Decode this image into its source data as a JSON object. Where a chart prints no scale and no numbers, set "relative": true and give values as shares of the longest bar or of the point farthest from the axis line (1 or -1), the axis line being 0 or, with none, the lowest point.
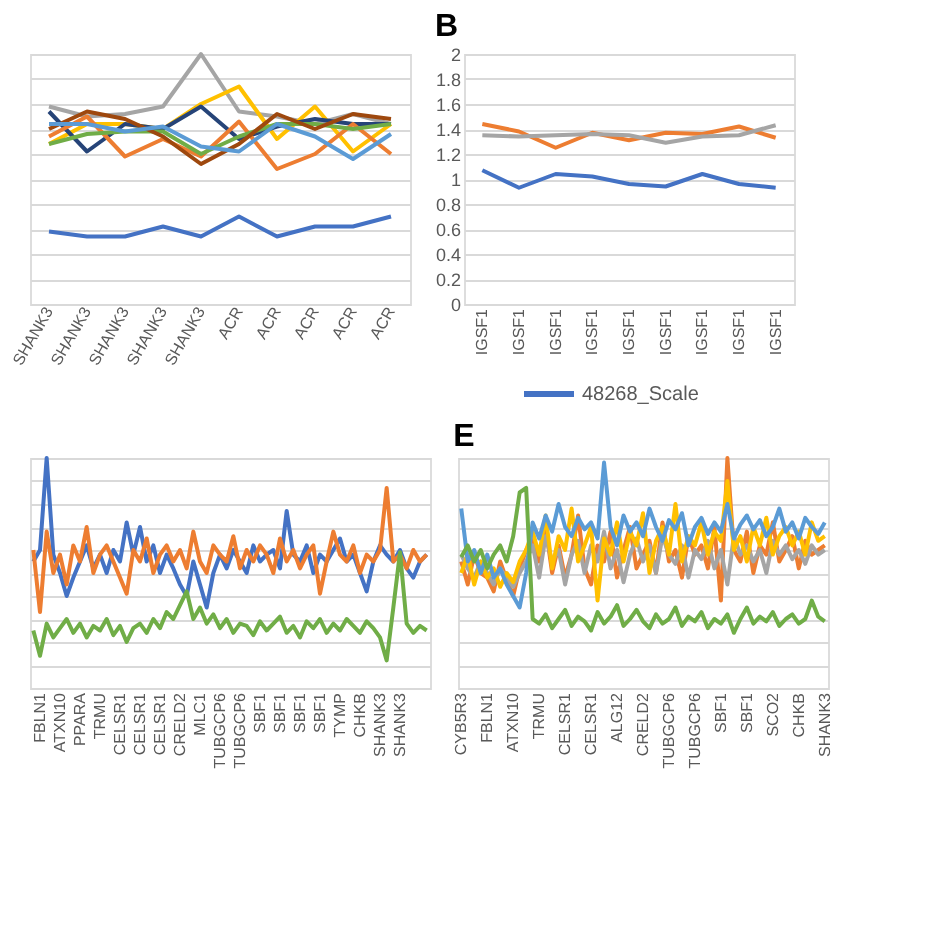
{
  "chart_data": [
    {
      "type": "line",
      "relative": true,
      "grid": "y",
      "categories": [
        "SHANK3",
        "SHANK3",
        "SHANK3",
        "SHANK3",
        "SHANK3",
        "ACR",
        "ACR",
        "ACR",
        "ACR",
        "ACR"
      ],
      "series": [
        {
          "color": "#4472c4",
          "values": [
            0.29,
            0.27,
            0.27,
            0.31,
            0.27,
            0.35,
            0.27,
            0.31,
            0.31,
            0.35
          ]
        },
        {
          "color": "#a5a5a5",
          "values": [
            0.79,
            0.75,
            0.76,
            0.79,
            1.0,
            0.77,
            0.75,
            0.72,
            0.76,
            0.72
          ]
        },
        {
          "color": "#ffc000",
          "values": [
            0.64,
            0.72,
            0.72,
            0.7,
            0.8,
            0.87,
            0.66,
            0.79,
            0.61,
            0.72
          ]
        },
        {
          "color": "#264478",
          "values": [
            0.77,
            0.61,
            0.72,
            0.7,
            0.79,
            0.66,
            0.71,
            0.74,
            0.72,
            0.72
          ]
        },
        {
          "color": "#ed7d31",
          "values": [
            0.67,
            0.75,
            0.59,
            0.66,
            0.59,
            0.73,
            0.54,
            0.6,
            0.72,
            0.6
          ]
        },
        {
          "color": "#70ad47",
          "values": [
            0.64,
            0.68,
            0.69,
            0.69,
            0.6,
            0.67,
            0.72,
            0.72,
            0.7,
            0.72
          ]
        },
        {
          "color": "#9e480e",
          "values": [
            0.7,
            0.77,
            0.74,
            0.67,
            0.56,
            0.64,
            0.76,
            0.7,
            0.76,
            0.74
          ]
        },
        {
          "color": "#5b9bd5",
          "values": [
            0.72,
            0.72,
            0.69,
            0.71,
            0.63,
            0.61,
            0.72,
            0.67,
            0.58,
            0.68
          ]
        }
      ]
    },
    {
      "type": "line",
      "title": "B",
      "grid": "y",
      "legend": "bottom",
      "ylim": [
        0,
        2
      ],
      "yticks": [
        0,
        0.2,
        0.4,
        0.6,
        0.8,
        1,
        1.2,
        1.4,
        1.6,
        1.8,
        2
      ],
      "categories": [
        "IGSF1",
        "IGSF1",
        "IGSF1",
        "IGSF1",
        "IGSF1",
        "IGSF1",
        "IGSF1",
        "IGSF1",
        "IGSF1"
      ],
      "series": [
        {
          "name": "48268_Scale",
          "color": "#4472c4",
          "values": [
            1.07,
            0.93,
            1.04,
            1.02,
            0.96,
            0.94,
            1.04,
            0.96,
            0.93
          ]
        },
        {
          "color": "#ed7d31",
          "values": [
            1.44,
            1.38,
            1.25,
            1.37,
            1.31,
            1.37,
            1.36,
            1.42,
            1.33
          ]
        },
        {
          "color": "#a5a5a5",
          "values": [
            1.35,
            1.34,
            1.35,
            1.36,
            1.35,
            1.29,
            1.34,
            1.35,
            1.43
          ]
        }
      ]
    },
    {
      "type": "line",
      "relative": true,
      "grid": "y",
      "categories": [
        null,
        "FBLN1",
        null,
        null,
        "ATXN10",
        null,
        null,
        "PPARA",
        null,
        null,
        "TRMU",
        null,
        null,
        "CELSR1",
        null,
        null,
        "CELSR1",
        null,
        null,
        "CELSR1",
        null,
        null,
        "CRELD2",
        null,
        null,
        "MLC1",
        null,
        null,
        "TUBGCP6",
        null,
        null,
        "TUBGCP6",
        null,
        null,
        "SBF1",
        null,
        null,
        "SBF1",
        null,
        null,
        "SBF1",
        null,
        null,
        "SBF1",
        null,
        null,
        "TYMP",
        null,
        null,
        "CHKB",
        null,
        null,
        "SHANK3",
        null,
        null,
        "SHANK3",
        null,
        null,
        null,
        null
      ],
      "series": [
        {
          "color": "#4472c4",
          "values": [
            0.55,
            0.6,
            1.0,
            0.58,
            0.5,
            0.4,
            0.48,
            0.55,
            0.62,
            0.52,
            0.58,
            0.5,
            0.6,
            0.55,
            0.72,
            0.58,
            0.7,
            0.55,
            0.62,
            0.5,
            0.58,
            0.52,
            0.45,
            0.4,
            0.55,
            0.45,
            0.35,
            0.5,
            0.58,
            0.52,
            0.6,
            0.55,
            0.5,
            0.62,
            0.55,
            0.58,
            0.6,
            0.52,
            0.77,
            0.58,
            0.55,
            0.62,
            0.5,
            0.58,
            0.55,
            0.6,
            0.65,
            0.55,
            0.58,
            0.5,
            0.42,
            0.55,
            0.62,
            0.58,
            0.55,
            0.6,
            0.52,
            0.48,
            0.55,
            0.58
          ]
        },
        {
          "color": "#ed7d31",
          "values": [
            0.6,
            0.33,
            0.68,
            0.5,
            0.58,
            0.45,
            0.62,
            0.55,
            0.7,
            0.5,
            0.58,
            0.62,
            0.55,
            0.48,
            0.41,
            0.6,
            0.55,
            0.65,
            0.5,
            0.58,
            0.62,
            0.55,
            0.6,
            0.52,
            0.68,
            0.55,
            0.5,
            0.62,
            0.58,
            0.55,
            0.66,
            0.52,
            0.6,
            0.55,
            0.62,
            0.58,
            0.5,
            0.65,
            0.55,
            0.6,
            0.52,
            0.58,
            0.62,
            0.41,
            0.55,
            0.68,
            0.58,
            0.55,
            0.62,
            0.5,
            0.58,
            0.55,
            0.6,
            0.87,
            0.55,
            0.58,
            0.52,
            0.6,
            0.55,
            0.58
          ]
        },
        {
          "color": "#70ad47",
          "values": [
            0.25,
            0.14,
            0.28,
            0.22,
            0.26,
            0.3,
            0.24,
            0.28,
            0.22,
            0.27,
            0.25,
            0.3,
            0.23,
            0.27,
            0.2,
            0.26,
            0.28,
            0.24,
            0.3,
            0.26,
            0.33,
            0.3,
            0.36,
            0.42,
            0.3,
            0.35,
            0.28,
            0.32,
            0.26,
            0.3,
            0.24,
            0.28,
            0.27,
            0.23,
            0.29,
            0.25,
            0.28,
            0.31,
            0.24,
            0.27,
            0.22,
            0.29,
            0.26,
            0.3,
            0.24,
            0.28,
            0.25,
            0.3,
            0.27,
            0.24,
            0.29,
            0.26,
            0.22,
            0.12,
            0.35,
            0.59,
            0.28,
            0.24,
            0.27,
            0.25
          ]
        }
      ]
    },
    {
      "type": "line",
      "title": "E",
      "relative": true,
      "grid": "y",
      "categories": [
        "CYB5R3",
        null,
        null,
        null,
        "FBLN1",
        null,
        null,
        null,
        "ATXN10",
        null,
        null,
        null,
        "TRMU",
        null,
        null,
        null,
        "CELSR1",
        null,
        null,
        null,
        "CELSR1",
        null,
        null,
        null,
        "ALG12",
        null,
        null,
        null,
        "CRELD2",
        null,
        null,
        null,
        "TUBGCP6",
        null,
        null,
        null,
        "TUBGCP6",
        null,
        null,
        null,
        "SBF1",
        null,
        null,
        null,
        "SBF1",
        null,
        null,
        null,
        "SCO2",
        null,
        null,
        null,
        "CHKB",
        null,
        null,
        null,
        "SHANK3"
      ],
      "series": [
        {
          "color": "#ed7d31",
          "values": [
            0.55,
            0.45,
            0.58,
            0.5,
            0.48,
            0.42,
            0.55,
            0.47,
            0.4,
            0.52,
            0.6,
            0.65,
            0.55,
            0.7,
            0.5,
            0.62,
            0.48,
            0.58,
            0.75,
            0.52,
            0.45,
            0.62,
            0.55,
            0.68,
            0.48,
            0.6,
            0.7,
            0.52,
            0.58,
            0.64,
            0.5,
            0.72,
            0.55,
            0.6,
            0.48,
            0.66,
            0.58,
            0.62,
            0.52,
            0.7,
            0.38,
            1.0,
            0.6,
            0.55,
            0.68,
            0.5,
            0.62,
            0.58,
            0.72,
            0.55,
            0.6,
            0.66,
            0.52,
            0.64,
            0.58,
            0.6,
            0.62
          ]
        },
        {
          "color": "#a5a5a5",
          "values": [
            0.58,
            0.52,
            0.48,
            0.55,
            0.5,
            0.45,
            0.52,
            0.48,
            0.44,
            0.5,
            0.55,
            0.62,
            0.48,
            0.66,
            0.55,
            0.6,
            0.45,
            0.58,
            0.64,
            0.5,
            0.62,
            0.55,
            0.68,
            0.52,
            0.6,
            0.46,
            0.58,
            0.65,
            0.55,
            0.62,
            0.5,
            0.66,
            0.58,
            0.54,
            0.62,
            0.48,
            0.6,
            0.56,
            0.64,
            0.52,
            0.6,
            0.45,
            0.66,
            0.58,
            0.62,
            0.55,
            0.6,
            0.5,
            0.64,
            0.58,
            0.62,
            0.56,
            0.6,
            0.54,
            0.62,
            0.58,
            0.6
          ]
        },
        {
          "color": "#ffc000",
          "values": [
            0.5,
            0.58,
            0.45,
            0.55,
            0.48,
            0.52,
            0.44,
            0.5,
            0.46,
            0.55,
            0.6,
            0.68,
            0.58,
            0.75,
            0.52,
            0.66,
            0.6,
            0.78,
            0.55,
            0.62,
            0.7,
            0.38,
            0.65,
            0.58,
            0.72,
            0.55,
            0.68,
            0.62,
            0.76,
            0.5,
            0.64,
            0.7,
            0.58,
            0.8,
            0.55,
            0.66,
            0.62,
            0.72,
            0.58,
            0.68,
            0.64,
            0.9,
            0.6,
            0.66,
            0.55,
            0.7,
            0.62,
            0.74,
            0.58,
            0.66,
            0.7,
            0.62,
            0.68,
            0.58,
            0.72,
            0.64,
            0.66
          ]
        },
        {
          "color": "#5b9bd5",
          "values": [
            0.78,
            0.55,
            0.6,
            0.5,
            0.58,
            0.48,
            0.52,
            0.45,
            0.4,
            0.35,
            0.5,
            0.72,
            0.65,
            0.75,
            0.68,
            0.8,
            0.7,
            0.66,
            0.74,
            0.69,
            0.72,
            0.65,
            0.98,
            0.7,
            0.62,
            0.75,
            0.68,
            0.72,
            0.66,
            0.78,
            0.7,
            0.64,
            0.73,
            0.69,
            0.76,
            0.62,
            0.7,
            0.74,
            0.67,
            0.72,
            0.68,
            0.8,
            0.65,
            0.71,
            0.75,
            0.69,
            0.73,
            0.66,
            0.7,
            0.78,
            0.68,
            0.72,
            0.65,
            0.74,
            0.7,
            0.67,
            0.72
          ]
        },
        {
          "color": "#70ad47",
          "values": [
            0.57,
            0.62,
            0.55,
            0.6,
            0.52,
            0.58,
            0.62,
            0.55,
            0.66,
            0.85,
            0.87,
            0.3,
            0.28,
            0.32,
            0.26,
            0.3,
            0.34,
            0.27,
            0.31,
            0.29,
            0.25,
            0.33,
            0.28,
            0.31,
            0.36,
            0.27,
            0.3,
            0.34,
            0.29,
            0.26,
            0.32,
            0.28,
            0.3,
            0.35,
            0.27,
            0.31,
            0.29,
            0.33,
            0.26,
            0.3,
            0.28,
            0.32,
            0.24,
            0.3,
            0.35,
            0.28,
            0.31,
            0.29,
            0.33,
            0.27,
            0.3,
            0.32,
            0.28,
            0.3,
            0.38,
            0.31,
            0.29
          ]
        }
      ]
    }
  ]
}
